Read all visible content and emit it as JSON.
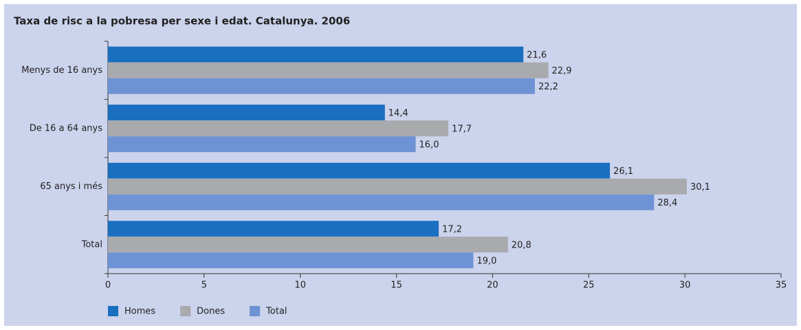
{
  "chart_data": {
    "type": "hbar",
    "title": "Taxa de risc a la pobresa per sexe i edat. Catalunya. 2006",
    "categories": [
      "Menys de 16 anys",
      "De 16 a 64 anys",
      "65 anys i més",
      "Total"
    ],
    "series": [
      {
        "name": "Homes",
        "color": "#1a6fc0",
        "values": [
          21.6,
          14.4,
          26.1,
          17.2
        ],
        "value_labels": [
          "21,6",
          "14,4",
          "26,1",
          "17,2"
        ]
      },
      {
        "name": "Dones",
        "color": "#a9aaae",
        "values": [
          22.9,
          17.7,
          30.1,
          20.8
        ],
        "value_labels": [
          "22,9",
          "17,7",
          "30,1",
          "20,8"
        ]
      },
      {
        "name": "Total",
        "color": "#6e93d4",
        "values": [
          22.2,
          16.0,
          28.4,
          19.0
        ],
        "value_labels": [
          "22,2",
          "16,0",
          "28,4",
          "19,0"
        ]
      }
    ],
    "xlim": [
      0,
      35
    ],
    "xticks": [
      0,
      5,
      10,
      15,
      20,
      25,
      30,
      35
    ],
    "legend": "bottom"
  }
}
